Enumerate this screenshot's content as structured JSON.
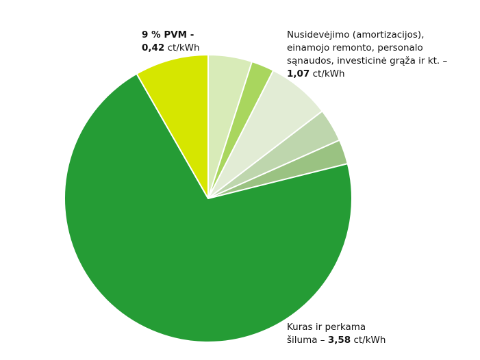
{
  "chart_data": {
    "type": "pie",
    "title": "",
    "unit": "ct/kWh",
    "start_angle_deg": 0,
    "direction": "clockwise",
    "slices": [
      {
        "label": "",
        "value": 0.25,
        "color": "#d8ebb8"
      },
      {
        "label": "",
        "value": 0.13,
        "color": "#a9d65e"
      },
      {
        "label": "",
        "value": 0.36,
        "color": "#e2ecd5"
      },
      {
        "label": "",
        "value": 0.19,
        "color": "#bed6ad"
      },
      {
        "label": "",
        "value": 0.14,
        "color": "#9ac282"
      },
      {
        "label": "Kuras ir perkama šiluma",
        "value": 3.58,
        "color": "#259c35"
      },
      {
        "label": "9 % PVM",
        "value": 0.42,
        "color": "#d6e600"
      }
    ],
    "legend": "none"
  },
  "labels": {
    "vat": {
      "text": "9 % PVM -",
      "value": "0,42",
      "unit": " ct/kWh"
    },
    "depreciation": {
      "line1": "Nusidevėjimo (amortizacijos),",
      "line2": "einamojo remonto, personalo",
      "line3": "sąnaudos, investicinė grąža ir kt. –",
      "value": "1,07",
      "unit": " ct/kWh"
    },
    "fuel": {
      "line1": "Kuras ir perkama",
      "line2_prefix": "šiluma – ",
      "value": "3,58",
      "unit": " ct/kWh"
    }
  }
}
